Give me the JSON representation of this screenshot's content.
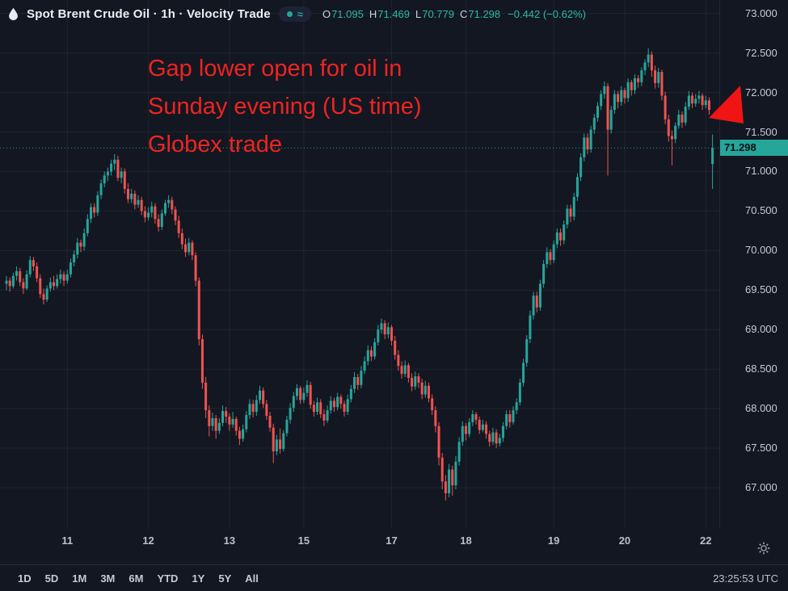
{
  "header": {
    "title": "Spot Brent Crude Oil · 1h · Velocity Trade",
    "legend_marks": "≈",
    "ohlc": [
      {
        "k": "O",
        "v": "71.095"
      },
      {
        "k": "H",
        "v": "71.469"
      },
      {
        "k": "L",
        "v": "70.779"
      },
      {
        "k": "C",
        "v": "71.298"
      }
    ],
    "change": "−0.442 (−0.62%)"
  },
  "annotation": {
    "lines": [
      "Gap lower open for oil in",
      "Sunday evening (US time)",
      "Globex trade"
    ]
  },
  "price_axis": {
    "current_price_label": "71.298"
  },
  "toolbar": {
    "ranges": [
      "1D",
      "5D",
      "1M",
      "3M",
      "6M",
      "YTD",
      "1Y",
      "5Y",
      "All"
    ],
    "clock": "23:25:53 UTC"
  },
  "colors": {
    "up": "#26a69a",
    "down": "#ef5350",
    "annotation_red": "#ee2420",
    "arrow_red": "#f11414",
    "tag_bg": "#26a69a",
    "background": "#131722"
  },
  "chart_data": {
    "type": "candlestick",
    "title": "Spot Brent Crude Oil",
    "interval": "1h",
    "provider": "Velocity Trade",
    "current_price": 71.298,
    "last_bar": {
      "open": 71.095,
      "high": 71.469,
      "low": 70.779,
      "close": 71.298,
      "change": -0.442,
      "change_pct": -0.62
    },
    "y_ticks": [
      73.0,
      72.5,
      72.0,
      71.5,
      71.0,
      70.5,
      70.0,
      69.5,
      69.0,
      68.5,
      68.0,
      67.5,
      67.0
    ],
    "y_range": [
      66.48,
      73.17
    ],
    "grid": true,
    "x_labels": [
      {
        "label": "11",
        "i": 18
      },
      {
        "label": "12",
        "i": 42
      },
      {
        "label": "13",
        "i": 66
      },
      {
        "label": "15",
        "i": 88
      },
      {
        "label": "17",
        "i": 114
      },
      {
        "label": "18",
        "i": 136
      },
      {
        "label": "19",
        "i": 162
      },
      {
        "label": "20",
        "i": 183
      },
      {
        "label": "22",
        "i": 207
      }
    ],
    "candles": [
      [
        69.58,
        69.68,
        69.5,
        69.62
      ],
      [
        69.62,
        69.66,
        69.48,
        69.55
      ],
      [
        69.55,
        69.72,
        69.52,
        69.68
      ],
      [
        69.68,
        69.8,
        69.62,
        69.74
      ],
      [
        69.74,
        69.78,
        69.55,
        69.6
      ],
      [
        69.6,
        69.65,
        69.45,
        69.52
      ],
      [
        69.52,
        69.75,
        69.5,
        69.7
      ],
      [
        69.7,
        69.93,
        69.66,
        69.88
      ],
      [
        69.88,
        69.92,
        69.74,
        69.8
      ],
      [
        69.8,
        69.85,
        69.6,
        69.65
      ],
      [
        69.65,
        69.7,
        69.4,
        69.45
      ],
      [
        69.45,
        69.52,
        69.32,
        69.38
      ],
      [
        69.38,
        69.56,
        69.35,
        69.52
      ],
      [
        69.52,
        69.66,
        69.48,
        69.6
      ],
      [
        69.6,
        69.68,
        69.5,
        69.55
      ],
      [
        69.55,
        69.7,
        69.52,
        69.64
      ],
      [
        69.64,
        69.76,
        69.58,
        69.7
      ],
      [
        69.7,
        69.74,
        69.55,
        69.62
      ],
      [
        69.62,
        69.76,
        69.58,
        69.7
      ],
      [
        69.7,
        69.9,
        69.66,
        69.85
      ],
      [
        69.85,
        70.0,
        69.8,
        69.95
      ],
      [
        69.95,
        70.16,
        69.9,
        70.1
      ],
      [
        70.1,
        70.14,
        69.98,
        70.05
      ],
      [
        70.05,
        70.28,
        70.0,
        70.22
      ],
      [
        70.22,
        70.46,
        70.18,
        70.4
      ],
      [
        70.4,
        70.6,
        70.35,
        70.55
      ],
      [
        70.55,
        70.6,
        70.42,
        70.48
      ],
      [
        70.48,
        70.75,
        70.44,
        70.7
      ],
      [
        70.7,
        70.9,
        70.65,
        70.85
      ],
      [
        70.85,
        71.0,
        70.8,
        70.95
      ],
      [
        70.95,
        71.05,
        70.88,
        71.0
      ],
      [
        71.0,
        71.15,
        70.95,
        71.1
      ],
      [
        71.1,
        71.22,
        71.02,
        71.15
      ],
      [
        71.15,
        71.2,
        70.88,
        70.92
      ],
      [
        70.92,
        71.05,
        70.85,
        71.0
      ],
      [
        71.0,
        71.04,
        70.72,
        70.78
      ],
      [
        70.78,
        70.85,
        70.6,
        70.65
      ],
      [
        70.65,
        70.78,
        70.6,
        70.72
      ],
      [
        70.72,
        70.76,
        70.52,
        70.58
      ],
      [
        70.58,
        70.7,
        70.54,
        70.64
      ],
      [
        70.64,
        70.68,
        70.45,
        70.5
      ],
      [
        70.5,
        70.56,
        70.36,
        70.42
      ],
      [
        70.42,
        70.55,
        70.38,
        70.48
      ],
      [
        70.48,
        70.62,
        70.42,
        70.56
      ],
      [
        70.56,
        70.6,
        70.34,
        70.4
      ],
      [
        70.4,
        70.46,
        70.24,
        70.3
      ],
      [
        70.3,
        70.52,
        70.26,
        70.47
      ],
      [
        70.47,
        70.64,
        70.44,
        70.6
      ],
      [
        70.6,
        70.7,
        70.54,
        70.64
      ],
      [
        70.64,
        70.68,
        70.46,
        70.52
      ],
      [
        70.52,
        70.56,
        70.32,
        70.38
      ],
      [
        70.38,
        70.44,
        70.16,
        70.22
      ],
      [
        70.22,
        70.28,
        70.02,
        70.08
      ],
      [
        70.08,
        70.15,
        69.92,
        69.98
      ],
      [
        69.98,
        70.16,
        69.94,
        70.1
      ],
      [
        70.1,
        70.13,
        69.88,
        69.94
      ],
      [
        69.94,
        69.98,
        69.55,
        69.62
      ],
      [
        69.62,
        69.66,
        68.8,
        68.88
      ],
      [
        68.88,
        68.94,
        68.25,
        68.33
      ],
      [
        68.33,
        68.4,
        67.88,
        67.98
      ],
      [
        67.98,
        68.04,
        67.65,
        67.78
      ],
      [
        67.78,
        67.95,
        67.72,
        67.88
      ],
      [
        67.88,
        67.92,
        67.62,
        67.72
      ],
      [
        67.72,
        67.88,
        67.68,
        67.82
      ],
      [
        67.82,
        68.04,
        67.78,
        67.97
      ],
      [
        67.97,
        68.02,
        67.82,
        67.9
      ],
      [
        67.9,
        67.94,
        67.72,
        67.8
      ],
      [
        67.8,
        67.96,
        67.76,
        67.87
      ],
      [
        67.87,
        67.9,
        67.66,
        67.72
      ],
      [
        67.72,
        67.77,
        67.54,
        67.62
      ],
      [
        67.62,
        67.8,
        67.58,
        67.74
      ],
      [
        67.74,
        67.97,
        67.7,
        67.92
      ],
      [
        67.92,
        68.12,
        67.87,
        68.06
      ],
      [
        68.06,
        68.11,
        67.89,
        67.96
      ],
      [
        67.96,
        68.17,
        67.91,
        68.11
      ],
      [
        68.11,
        68.29,
        68.06,
        68.23
      ],
      [
        68.23,
        68.27,
        68.01,
        68.06
      ],
      [
        68.06,
        68.11,
        67.86,
        67.91
      ],
      [
        67.91,
        67.96,
        67.71,
        67.76
      ],
      [
        67.76,
        67.81,
        67.31,
        67.46
      ],
      [
        67.46,
        67.67,
        67.41,
        67.61
      ],
      [
        67.61,
        67.75,
        67.43,
        67.49
      ],
      [
        67.49,
        67.73,
        67.46,
        67.69
      ],
      [
        67.69,
        67.91,
        67.65,
        67.86
      ],
      [
        67.86,
        68.07,
        67.81,
        68.01
      ],
      [
        68.01,
        68.21,
        67.96,
        68.16
      ],
      [
        68.16,
        68.31,
        68.11,
        68.26
      ],
      [
        68.26,
        68.29,
        68.06,
        68.11
      ],
      [
        68.11,
        68.27,
        68.07,
        68.2
      ],
      [
        68.2,
        68.36,
        68.15,
        68.3
      ],
      [
        68.3,
        68.34,
        68.0,
        68.05
      ],
      [
        68.05,
        68.1,
        67.9,
        67.96
      ],
      [
        67.96,
        68.14,
        67.92,
        68.08
      ],
      [
        68.08,
        68.12,
        67.88,
        67.93
      ],
      [
        67.93,
        67.99,
        67.78,
        67.85
      ],
      [
        67.85,
        68.04,
        67.82,
        67.98
      ],
      [
        67.98,
        68.16,
        67.94,
        68.1
      ],
      [
        68.1,
        68.14,
        67.96,
        68.02
      ],
      [
        68.02,
        68.2,
        67.98,
        68.15
      ],
      [
        68.15,
        68.18,
        68.0,
        68.06
      ],
      [
        68.06,
        68.1,
        67.9,
        67.96
      ],
      [
        67.96,
        68.18,
        67.92,
        68.12
      ],
      [
        68.12,
        68.3,
        68.08,
        68.25
      ],
      [
        68.25,
        68.46,
        68.2,
        68.4
      ],
      [
        68.4,
        68.44,
        68.24,
        68.3
      ],
      [
        68.3,
        68.54,
        68.26,
        68.48
      ],
      [
        68.48,
        68.66,
        68.44,
        68.6
      ],
      [
        68.6,
        68.8,
        68.55,
        68.74
      ],
      [
        68.74,
        68.79,
        68.6,
        68.66
      ],
      [
        68.66,
        68.89,
        68.62,
        68.84
      ],
      [
        68.84,
        69.06,
        68.8,
        69.0
      ],
      [
        69.0,
        69.14,
        68.95,
        69.08
      ],
      [
        69.08,
        69.12,
        68.88,
        68.94
      ],
      [
        68.94,
        69.09,
        68.89,
        69.03
      ],
      [
        69.03,
        69.06,
        68.8,
        68.86
      ],
      [
        68.86,
        68.92,
        68.62,
        68.68
      ],
      [
        68.68,
        68.74,
        68.48,
        68.54
      ],
      [
        68.54,
        68.6,
        68.38,
        68.44
      ],
      [
        68.44,
        68.61,
        68.4,
        68.55
      ],
      [
        68.55,
        68.58,
        68.33,
        68.39
      ],
      [
        68.39,
        68.45,
        68.22,
        68.28
      ],
      [
        68.28,
        68.47,
        68.24,
        68.41
      ],
      [
        68.41,
        68.45,
        68.26,
        68.33
      ],
      [
        68.33,
        68.38,
        68.12,
        68.18
      ],
      [
        68.18,
        68.35,
        68.14,
        68.29
      ],
      [
        68.29,
        68.33,
        68.08,
        68.13
      ],
      [
        68.13,
        68.18,
        67.92,
        67.98
      ],
      [
        67.98,
        68.03,
        67.7,
        67.78
      ],
      [
        67.78,
        67.83,
        67.28,
        67.38
      ],
      [
        67.38,
        67.44,
        66.98,
        67.08
      ],
      [
        67.08,
        67.16,
        66.84,
        66.93
      ],
      [
        66.93,
        67.3,
        66.88,
        67.23
      ],
      [
        67.23,
        67.28,
        66.9,
        67.03
      ],
      [
        67.03,
        67.4,
        66.98,
        67.33
      ],
      [
        67.33,
        67.64,
        67.28,
        67.58
      ],
      [
        67.58,
        67.84,
        67.53,
        67.78
      ],
      [
        67.78,
        67.82,
        67.6,
        67.68
      ],
      [
        67.68,
        67.88,
        67.64,
        67.83
      ],
      [
        67.83,
        67.98,
        67.78,
        67.93
      ],
      [
        67.93,
        67.96,
        67.8,
        67.86
      ],
      [
        67.86,
        67.9,
        67.68,
        67.73
      ],
      [
        67.73,
        67.86,
        67.7,
        67.8
      ],
      [
        67.8,
        67.84,
        67.62,
        67.68
      ],
      [
        67.68,
        67.72,
        67.52,
        67.58
      ],
      [
        67.58,
        67.76,
        67.54,
        67.7
      ],
      [
        67.7,
        67.74,
        67.5,
        67.56
      ],
      [
        67.56,
        67.68,
        67.52,
        67.63
      ],
      [
        67.63,
        67.83,
        67.58,
        67.78
      ],
      [
        67.78,
        67.98,
        67.74,
        67.93
      ],
      [
        67.93,
        67.98,
        67.76,
        67.83
      ],
      [
        67.83,
        68.03,
        67.8,
        67.98
      ],
      [
        67.98,
        68.13,
        67.93,
        68.08
      ],
      [
        68.08,
        68.38,
        68.04,
        68.33
      ],
      [
        68.33,
        68.63,
        68.28,
        68.58
      ],
      [
        68.58,
        68.93,
        68.53,
        68.88
      ],
      [
        68.88,
        69.24,
        68.83,
        69.18
      ],
      [
        69.18,
        69.48,
        69.13,
        69.43
      ],
      [
        69.43,
        69.48,
        69.22,
        69.28
      ],
      [
        69.28,
        69.63,
        69.24,
        69.58
      ],
      [
        69.58,
        69.88,
        69.53,
        69.83
      ],
      [
        69.83,
        70.04,
        69.78,
        69.98
      ],
      [
        69.98,
        70.02,
        69.82,
        69.88
      ],
      [
        69.88,
        70.13,
        69.84,
        70.08
      ],
      [
        70.08,
        70.28,
        70.03,
        70.23
      ],
      [
        70.23,
        70.28,
        70.06,
        70.13
      ],
      [
        70.13,
        70.38,
        70.08,
        70.33
      ],
      [
        70.33,
        70.58,
        70.28,
        70.53
      ],
      [
        70.53,
        70.58,
        70.36,
        70.43
      ],
      [
        70.43,
        70.73,
        70.38,
        70.68
      ],
      [
        70.68,
        70.98,
        70.63,
        70.93
      ],
      [
        70.93,
        71.23,
        70.88,
        71.18
      ],
      [
        71.18,
        71.48,
        71.13,
        71.43
      ],
      [
        71.43,
        71.48,
        71.22,
        71.28
      ],
      [
        71.28,
        71.58,
        71.24,
        71.53
      ],
      [
        71.53,
        71.73,
        71.48,
        71.68
      ],
      [
        71.68,
        71.88,
        71.63,
        71.83
      ],
      [
        71.83,
        72.03,
        71.78,
        71.98
      ],
      [
        71.98,
        72.14,
        71.92,
        72.08
      ],
      [
        72.08,
        72.12,
        70.95,
        71.53
      ],
      [
        71.53,
        71.83,
        71.48,
        71.78
      ],
      [
        71.78,
        72.03,
        71.73,
        71.98
      ],
      [
        71.98,
        72.02,
        71.8,
        71.88
      ],
      [
        71.88,
        72.08,
        71.83,
        72.03
      ],
      [
        72.03,
        72.06,
        71.86,
        71.93
      ],
      [
        71.93,
        72.18,
        71.88,
        72.13
      ],
      [
        72.13,
        72.16,
        71.96,
        72.03
      ],
      [
        72.03,
        72.23,
        71.98,
        72.18
      ],
      [
        72.18,
        72.22,
        72.06,
        72.13
      ],
      [
        72.13,
        72.32,
        72.08,
        72.28
      ],
      [
        72.28,
        72.42,
        72.22,
        72.38
      ],
      [
        72.38,
        72.56,
        72.32,
        72.48
      ],
      [
        72.48,
        72.52,
        72.2,
        72.28
      ],
      [
        72.28,
        72.34,
        72.05,
        72.12
      ],
      [
        72.12,
        72.31,
        72.06,
        72.26
      ],
      [
        72.26,
        72.29,
        71.9,
        71.96
      ],
      [
        71.96,
        72.01,
        71.6,
        71.66
      ],
      [
        71.66,
        71.72,
        71.38,
        71.45
      ],
      [
        71.45,
        71.52,
        71.08,
        71.41
      ],
      [
        71.41,
        71.62,
        71.36,
        71.58
      ],
      [
        71.58,
        71.78,
        71.54,
        71.72
      ],
      [
        71.72,
        71.76,
        71.55,
        71.62
      ],
      [
        71.62,
        71.88,
        71.58,
        71.82
      ],
      [
        71.82,
        72.02,
        71.78,
        71.96
      ],
      [
        71.96,
        72.0,
        71.8,
        71.86
      ],
      [
        71.86,
        71.98,
        71.82,
        71.92
      ],
      [
        71.92,
        72.02,
        71.86,
        71.96
      ],
      [
        71.96,
        71.99,
        71.78,
        71.84
      ],
      [
        71.84,
        71.96,
        71.8,
        71.9
      ],
      [
        71.9,
        71.94,
        71.72,
        71.78
      ],
      [
        71.095,
        71.469,
        70.779,
        71.298
      ]
    ]
  }
}
